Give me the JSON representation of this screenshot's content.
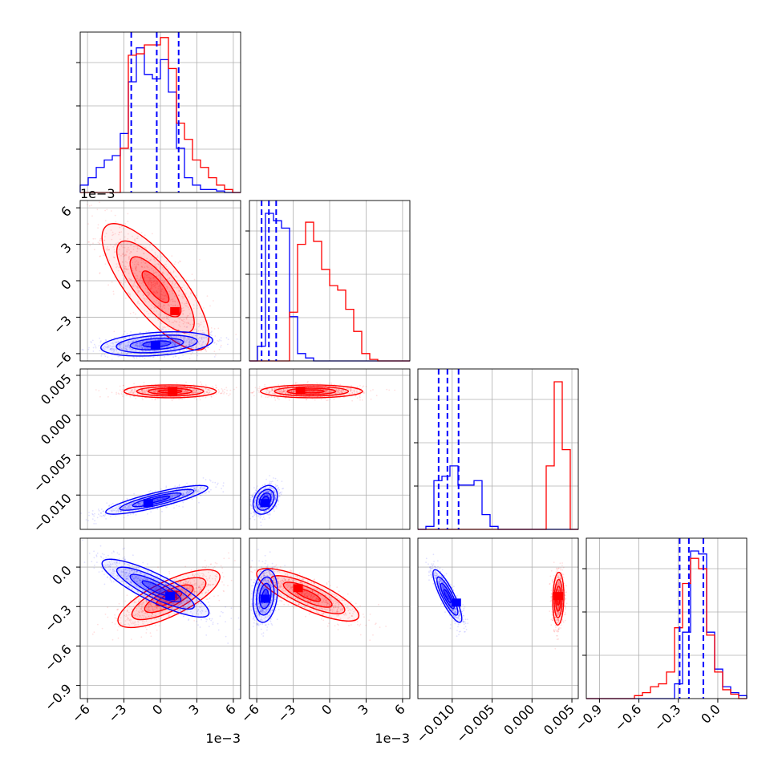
{
  "chart_data": {
    "type": "corner",
    "grid": true,
    "colors": {
      "series_a": "#ff0000",
      "series_b": "#0000ff",
      "quantile_line": "#0000ff",
      "grid": "#b0b0b0"
    },
    "parameters": [
      {
        "range": [
          -0.0066,
          0.0066
        ],
        "ticks": [
          -6,
          -3,
          0,
          3,
          6
        ],
        "tick_labels": [
          "−6",
          "−3",
          "0",
          "3",
          "6"
        ],
        "tick_scale": 0.001,
        "offset_text": "1e−3"
      },
      {
        "range": [
          -0.0066,
          0.0066
        ],
        "ticks": [
          -6,
          -3,
          0,
          3,
          6
        ],
        "tick_labels": [
          "−6",
          "−3",
          "0",
          "3",
          "6"
        ],
        "tick_scale": 0.001,
        "offset_text": "1e−3"
      },
      {
        "range": [
          -0.0143,
          0.0058
        ],
        "ticks": [
          -0.01,
          -0.005,
          0.0,
          0.005
        ],
        "tick_labels": [
          "−0.010",
          "−0.005",
          "0.000",
          "0.005"
        ],
        "tick_scale": 1,
        "offset_text": ""
      },
      {
        "range": [
          -1.0,
          0.22
        ],
        "ticks": [
          -0.9,
          -0.6,
          -0.3,
          0.0
        ],
        "tick_labels": [
          "−0.9",
          "−0.6",
          "−0.3",
          "0.0"
        ],
        "tick_scale": 1,
        "offset_text": ""
      }
    ],
    "marginals": [
      {
        "bins": [
          -0.0066,
          0.0066,
          20
        ],
        "series_b": [
          0.05,
          0.1,
          0.17,
          0.22,
          0.25,
          0.4,
          0.75,
          0.98,
          0.8,
          0.77,
          0.9,
          0.68,
          0.3,
          0.1,
          0.05,
          0.02,
          0.02,
          0.01,
          0.0,
          0.0
        ],
        "series_a": [
          0.0,
          0.0,
          0.0,
          0.0,
          0.0,
          0.3,
          0.93,
          0.94,
          1.0,
          1.0,
          1.05,
          0.84,
          0.47,
          0.36,
          0.22,
          0.17,
          0.1,
          0.05,
          0.02,
          0.0
        ],
        "quantiles_b": [
          -0.0024,
          -0.0003,
          0.0015
        ]
      },
      {
        "bins": [
          -0.0066,
          0.0066,
          20
        ],
        "series_b": [
          0.0,
          0.1,
          1.0,
          0.95,
          0.9,
          0.3,
          0.05,
          0.02,
          0.0,
          0.0,
          0.0,
          0.0,
          0.0,
          0.0,
          0.0,
          0.0,
          0.0,
          0.0,
          0.0,
          0.0
        ],
        "series_a": [
          0.0,
          0.0,
          0.0,
          0.0,
          0.0,
          0.33,
          0.79,
          0.94,
          0.81,
          0.62,
          0.51,
          0.48,
          0.35,
          0.2,
          0.05,
          0.01,
          0.0,
          0.0,
          0.0,
          0.0
        ],
        "quantiles_b": [
          -0.0056,
          -0.005,
          -0.0044
        ]
      },
      {
        "bins": [
          -0.0143,
          0.0058,
          20
        ],
        "series_b": [
          0.0,
          0.02,
          0.33,
          0.36,
          0.43,
          0.3,
          0.3,
          0.33,
          0.1,
          0.02,
          0.0,
          0.0,
          0.0,
          0.0,
          0.0,
          0.0,
          0.0,
          0.0,
          0.0,
          0.0
        ],
        "series_a": [
          0.0,
          0.0,
          0.0,
          0.0,
          0.0,
          0.0,
          0.0,
          0.0,
          0.0,
          0.0,
          0.0,
          0.0,
          0.0,
          0.0,
          0.0,
          0.0,
          0.43,
          1.0,
          0.54,
          0.0
        ],
        "quantiles_b": [
          -0.0117,
          -0.0106,
          -0.0092
        ]
      },
      {
        "bins": [
          -1.0,
          0.22,
          20
        ],
        "series_b": [
          0.0,
          0.0,
          0.0,
          0.0,
          0.0,
          0.0,
          0.0,
          0.0,
          0.0,
          0.0,
          0.0,
          0.1,
          0.45,
          1.0,
          0.98,
          0.45,
          0.2,
          0.08,
          0.04,
          0.02
        ],
        "series_a": [
          0.0,
          0.0,
          0.0,
          0.0,
          0.0,
          0.0,
          0.02,
          0.04,
          0.08,
          0.1,
          0.18,
          0.48,
          0.78,
          0.95,
          0.88,
          0.43,
          0.18,
          0.06,
          0.03,
          0.0
        ],
        "quantiles_b": [
          -0.29,
          -0.22,
          -0.11
        ]
      }
    ],
    "pairs": [
      {
        "row": 1,
        "col": 0,
        "series_a": {
          "mean": [
            -0.0004,
            -0.0005
          ],
          "sd": [
            0.0022,
            0.0026
          ],
          "rho": -0.78,
          "peak": [
            0.0012,
            -0.0025
          ]
        },
        "series_b": {
          "mean": [
            -0.0003,
            -0.0052
          ],
          "sd": [
            0.0023,
            0.0005
          ],
          "rho": 0.3,
          "peak": [
            -0.0004,
            -0.0053
          ]
        }
      },
      {
        "row": 2,
        "col": 0,
        "series_a": {
          "mean": [
            0.0008,
            0.003
          ],
          "sd": [
            0.0019,
            0.0004
          ],
          "rho": 0.0,
          "peak": [
            0.001,
            0.003
          ]
        },
        "series_b": {
          "mean": [
            -0.0003,
            -0.0106
          ],
          "sd": [
            0.0021,
            0.0009
          ],
          "rho": 0.85,
          "peak": [
            -0.001,
            -0.011
          ]
        }
      },
      {
        "row": 2,
        "col": 1,
        "series_a": {
          "mean": [
            -0.0015,
            0.003
          ],
          "sd": [
            0.0021,
            0.0004
          ],
          "rho": 0.0,
          "peak": [
            -0.0024,
            0.0031
          ]
        },
        "series_b": {
          "mean": [
            -0.0053,
            -0.0106
          ],
          "sd": [
            0.0005,
            0.0009
          ],
          "rho": 0.3,
          "peak": [
            -0.0053,
            -0.011
          ]
        }
      },
      {
        "row": 3,
        "col": 0,
        "series_a": {
          "mean": [
            0.0007,
            -0.24
          ],
          "sd": [
            0.0021,
            0.11
          ],
          "rho": 0.75,
          "peak": [
            0.001,
            -0.21
          ]
        },
        "series_b": {
          "mean": [
            -0.0004,
            -0.16
          ],
          "sd": [
            0.0022,
            0.11
          ],
          "rho": -0.85,
          "peak": [
            0.0008,
            -0.22
          ]
        }
      },
      {
        "row": 3,
        "col": 1,
        "series_a": {
          "mean": [
            -0.0018,
            -0.21
          ],
          "sd": [
            0.0021,
            0.1
          ],
          "rho": -0.8,
          "peak": [
            -0.0026,
            -0.16
          ]
        },
        "series_b": {
          "mean": [
            -0.0053,
            -0.22
          ],
          "sd": [
            0.0005,
            0.1
          ],
          "rho": 0.2,
          "peak": [
            -0.0053,
            -0.24
          ]
        }
      },
      {
        "row": 3,
        "col": 2,
        "series_a": {
          "mean": [
            0.0033,
            -0.24
          ],
          "sd": [
            0.00035,
            0.1
          ],
          "rho": 0.1,
          "peak": [
            0.0033,
            -0.22
          ]
        },
        "series_b": {
          "mean": [
            -0.0106,
            -0.22
          ],
          "sd": [
            0.0009,
            0.1
          ],
          "rho": -0.85,
          "peak": [
            -0.0095,
            -0.27
          ]
        }
      }
    ]
  }
}
